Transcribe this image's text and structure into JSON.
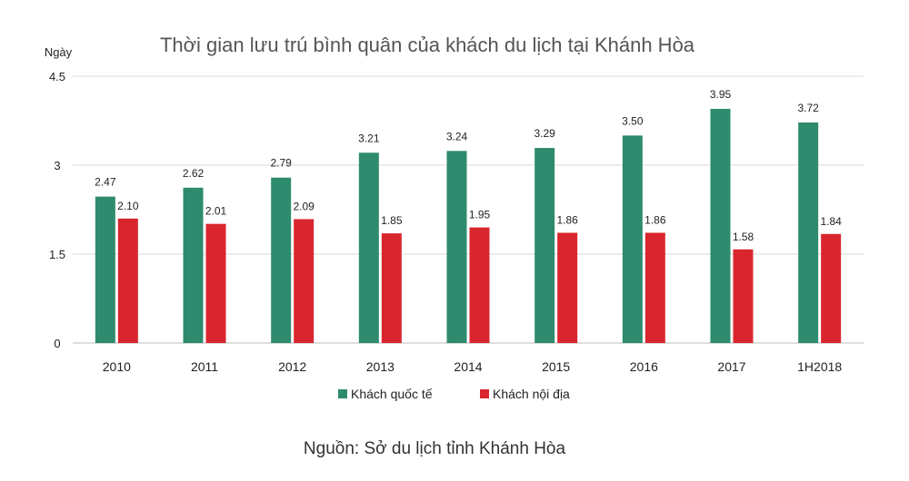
{
  "chart_data": {
    "type": "bar",
    "title": "Thời gian lưu trú bình quân của khách du lịch tại Khánh Hòa",
    "ylabel": "Ngày",
    "xlabel": "",
    "ylim": [
      0,
      4.5
    ],
    "yticks": [
      "0",
      "1.5",
      "3",
      "4.5"
    ],
    "grid": true,
    "legend_position": "bottom-center",
    "categories": [
      "2010",
      "2011",
      "2012",
      "2013",
      "2014",
      "2015",
      "2016",
      "2017",
      "1H2018"
    ],
    "series": [
      {
        "name": "Khách quốc tế",
        "color": "#2e8b6e",
        "values": [
          2.47,
          2.62,
          2.79,
          3.21,
          3.24,
          3.29,
          3.5,
          3.95,
          3.72
        ],
        "labels": [
          "2.47",
          "2.62",
          "2.79",
          "3.21",
          "3.24",
          "3.29",
          "3.50",
          "3.95",
          "3.72"
        ]
      },
      {
        "name": "Khách nội địa",
        "color": "#d9262e",
        "values": [
          2.1,
          2.01,
          2.09,
          1.85,
          1.95,
          1.86,
          1.86,
          1.58,
          1.84
        ],
        "labels": [
          "2.10",
          "2.01",
          "2.09",
          "1.85",
          "1.95",
          "1.86",
          "1.86",
          "1.58",
          "1.84"
        ]
      }
    ]
  },
  "source": "Nguồn: Sở du lịch tỉnh Khánh Hòa"
}
